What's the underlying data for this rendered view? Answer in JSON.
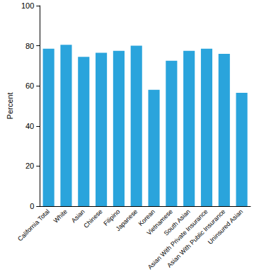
{
  "chart_data": {
    "type": "bar",
    "y_label": "Percent",
    "categories": [
      "California Total",
      "White",
      "Asian",
      "Chinese",
      "Filipino",
      "Japanese",
      "Korean",
      "Vietnamese",
      "South Asian",
      "Asian With Private Insurance",
      "Asian With Public Insurance",
      "Uninsured Asian"
    ],
    "values": [
      78.5,
      80.5,
      74.5,
      76.5,
      77.5,
      80,
      58,
      72.5,
      77.5,
      78.5,
      76,
      56.5
    ],
    "color": "#2aa4dc",
    "ylim": [
      0,
      100
    ],
    "yticks": [
      0,
      20,
      40,
      60,
      80,
      100
    ],
    "grid": false
  }
}
